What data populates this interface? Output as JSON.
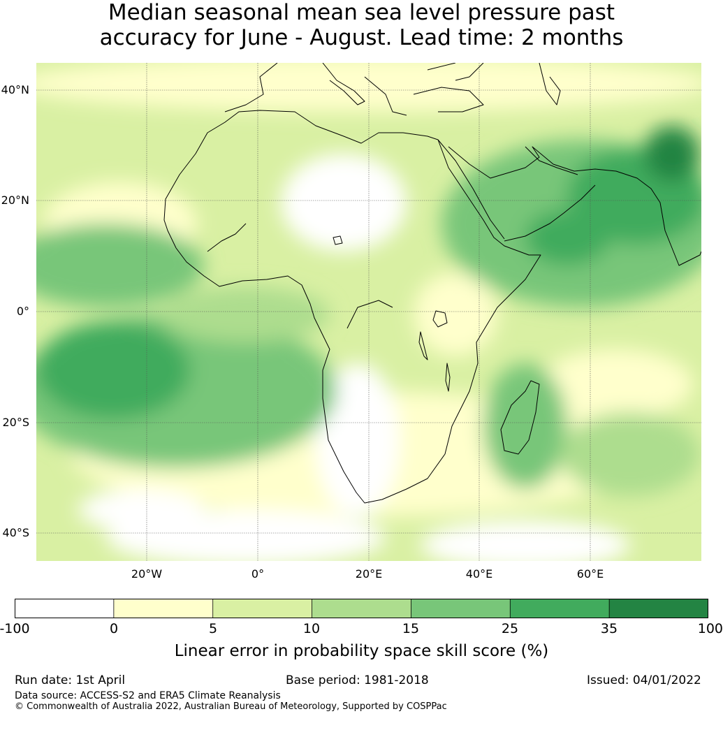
{
  "title": {
    "line1": "Median seasonal mean sea level pressure past",
    "line2": "accuracy for June - August. Lead time: 2 months"
  },
  "map": {
    "lat_labels": [
      "40°N",
      "20°N",
      "0°",
      "20°S",
      "40°S"
    ],
    "lon_labels": [
      "20°W",
      "0°",
      "20°E",
      "40°E",
      "60°E"
    ],
    "gridlines": true
  },
  "colorbar": {
    "ticks": [
      "-100",
      "0",
      "5",
      "10",
      "15",
      "25",
      "35",
      "100"
    ],
    "colors": [
      "#ffffff",
      "#ffffcc",
      "#d9f0a3",
      "#addd8e",
      "#78c679",
      "#41ab5d",
      "#238443"
    ],
    "label": "Linear error in probability space skill score (%)"
  },
  "footer": {
    "run_date": "Run date: 1st April",
    "base_period": "Base period: 1981-2018",
    "issued": "Issued: 04/01/2022",
    "data_source": "Data source: ACCESS-S2 and ERA5 Climate Reanalysis",
    "copyright": "© Commonwealth of Australia 2022, Australian Bureau of Meteorology, Supported by COSPPac"
  }
}
